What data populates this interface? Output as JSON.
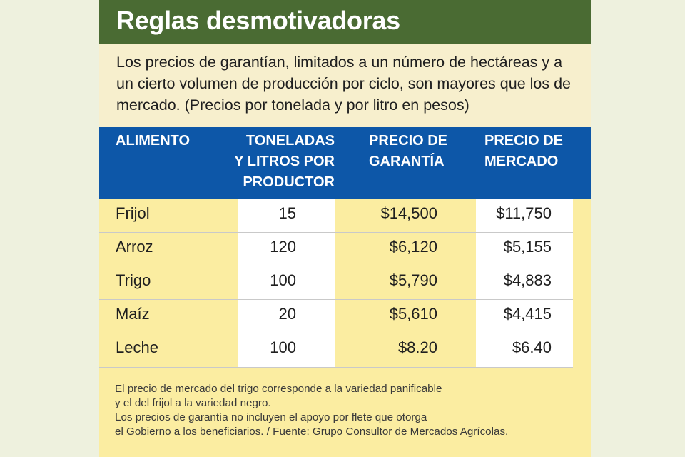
{
  "title": "Reglas desmotivadoras",
  "intro": "Los precios de garantían, limitados a un número de hectáreas y a un cierto volumen de producción por ciclo, son mayores que los de mercado. (Precios por tonelada y por litro en pesos)",
  "table": {
    "headers": [
      "ALIMENTO",
      "TONELADAS\nY LITROS POR\nPRODUCTOR",
      "PRECIO DE\nGARANTÍA",
      "PRECIO DE\nMERCADO"
    ],
    "rows": [
      {
        "alimento": "Frijol",
        "volumen": "15",
        "garantia": "$14,500",
        "mercado": "$11,750"
      },
      {
        "alimento": "Arroz",
        "volumen": "120",
        "garantia": "$6,120",
        "mercado": "$5,155"
      },
      {
        "alimento": "Trigo",
        "volumen": "100",
        "garantia": "$5,790",
        "mercado": "$4,883"
      },
      {
        "alimento": "Maíz",
        "volumen": "20",
        "garantia": "$5,610",
        "mercado": "$4,415"
      },
      {
        "alimento": "Leche",
        "volumen": "100",
        "garantia": "$8.20",
        "mercado": "$6.40"
      }
    ]
  },
  "notes": "El precio de mercado del trigo corresponde a la variedad panificable\ny el del frijol a la variedad negro.\nLos precios de garantía no incluyen el apoyo por flete que otorga\nel Gobierno a los beneficiarios. / Fuente: Grupo Consultor de Mercados Agrícolas.",
  "colors": {
    "title_bar": "#4a6b33",
    "header": "#0d57a8",
    "body": "#fbeda1",
    "intro_bg": "#f7efcd"
  }
}
